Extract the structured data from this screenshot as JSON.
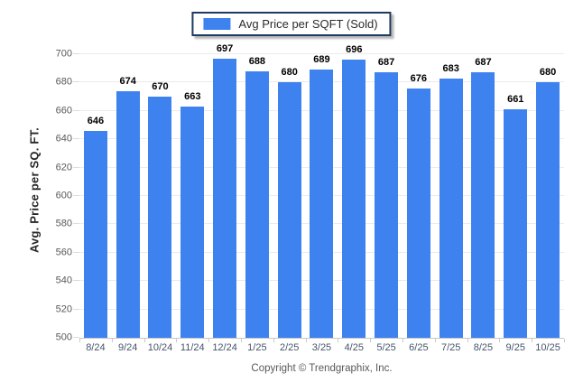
{
  "legend": {
    "label": "Avg Price per SQFT (Sold)",
    "swatch_color": "#3E82F0",
    "border_color": "#1F3A60"
  },
  "footer": {
    "copyright": "Copyright © Trendgraphix, Inc."
  },
  "chart_data": {
    "type": "bar",
    "title": "Avg Price per SQFT (Sold)",
    "ylabel": "Avg. Price per SQ. FT.",
    "xlabel": "",
    "categories": [
      "8/24",
      "9/24",
      "10/24",
      "11/24",
      "12/24",
      "1/25",
      "2/25",
      "3/25",
      "4/25",
      "5/25",
      "6/25",
      "7/25",
      "8/25",
      "9/25",
      "10/25"
    ],
    "values": [
      646,
      674,
      670,
      663,
      697,
      688,
      680,
      689,
      696,
      687,
      676,
      683,
      687,
      661,
      680
    ],
    "ylim": [
      500,
      700
    ],
    "ytick_step": 20,
    "grid": "horizontal",
    "legend_position": "top-center",
    "bar_color": "#3E82F0",
    "value_labels": true
  }
}
